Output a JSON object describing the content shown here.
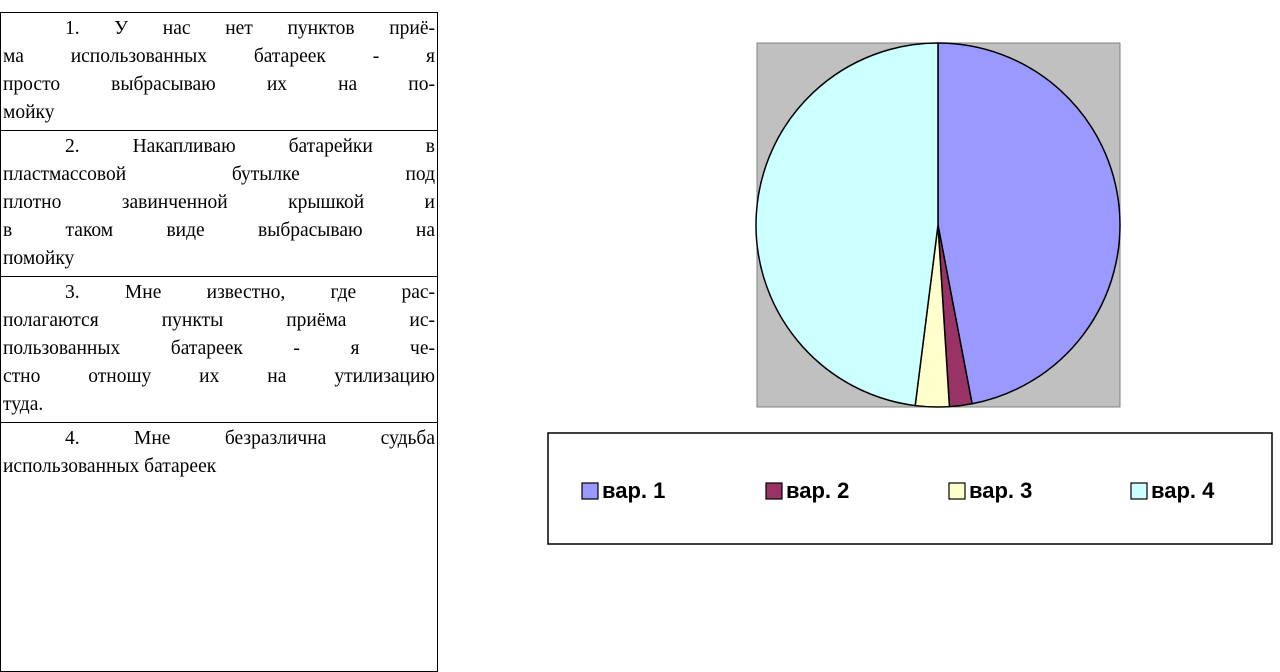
{
  "table": {
    "rows": [
      {
        "lines": [
          "1. У нас нет пунктов приё-",
          "ма использованных батареек - я",
          "просто выбрасываю их на по-",
          "мойку"
        ]
      },
      {
        "lines": [
          "2. Накапливаю батарейки в",
          "пластмассовой бутылке под",
          "плотно завинченной крышкой и",
          "в таком виде выбрасываю на",
          "помойку"
        ]
      },
      {
        "lines": [
          "3. Мне известно, где рас-",
          "полагаются пункты приёма ис-",
          "пользованных батареек - я че-",
          "стно отношу их на утилизацию",
          "туда."
        ]
      },
      {
        "lines": [
          "4. Мне безразлична судьба",
          "использованных батареек"
        ]
      }
    ]
  },
  "chart_data": {
    "type": "pie",
    "categories": [
      "вар. 1",
      "вар. 2",
      "вар. 3",
      "вар. 4"
    ],
    "values": [
      47,
      2,
      3,
      48
    ],
    "colors": [
      "#9999ff",
      "#993366",
      "#ffffcc",
      "#ccffff"
    ]
  }
}
